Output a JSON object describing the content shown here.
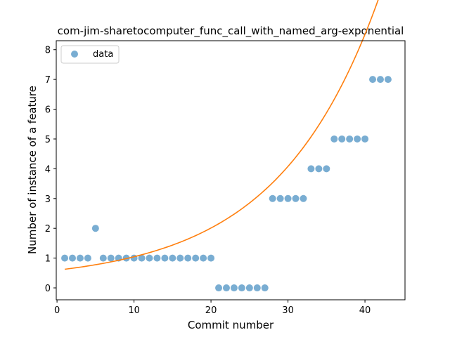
{
  "chart_data": {
    "type": "scatter",
    "title": "com-jim-sharetocomputer_func_call_with_named_arg-exponential",
    "xlabel": "Commit number",
    "ylabel": "Number of instance of a feature",
    "xlim": [
      -0.1,
      45.2
    ],
    "ylim": [
      -0.4,
      8.3
    ],
    "xticks": [
      0,
      10,
      20,
      30,
      40
    ],
    "yticks": [
      0,
      1,
      2,
      3,
      4,
      5,
      6,
      7,
      8
    ],
    "grid": false,
    "legend_position": "upper-left",
    "colors": {
      "data": "#1f77b4",
      "fit": "#ff7f0e"
    },
    "series": [
      {
        "name": "data",
        "kind": "scatter",
        "x": [
          1,
          2,
          3,
          4,
          5,
          6,
          7,
          8,
          9,
          10,
          11,
          12,
          13,
          14,
          15,
          16,
          17,
          18,
          19,
          20,
          21,
          22,
          23,
          24,
          25,
          26,
          27,
          28,
          29,
          30,
          31,
          32,
          33,
          34,
          35,
          36,
          37,
          38,
          39,
          40,
          41,
          42,
          43
        ],
        "y": [
          1,
          1,
          1,
          1,
          2,
          1,
          1,
          1,
          1,
          1,
          1,
          1,
          1,
          1,
          1,
          1,
          1,
          1,
          1,
          1,
          0,
          0,
          0,
          0,
          0,
          0,
          0,
          3,
          3,
          3,
          3,
          3,
          4,
          4,
          4,
          5,
          5,
          5,
          5,
          5,
          7,
          7,
          7
        ]
      },
      {
        "kind": "line",
        "model": {
          "a": 0.3944,
          "b": 0.0762,
          "c": 0.2
        },
        "x_range": [
          1,
          43
        ]
      }
    ]
  }
}
